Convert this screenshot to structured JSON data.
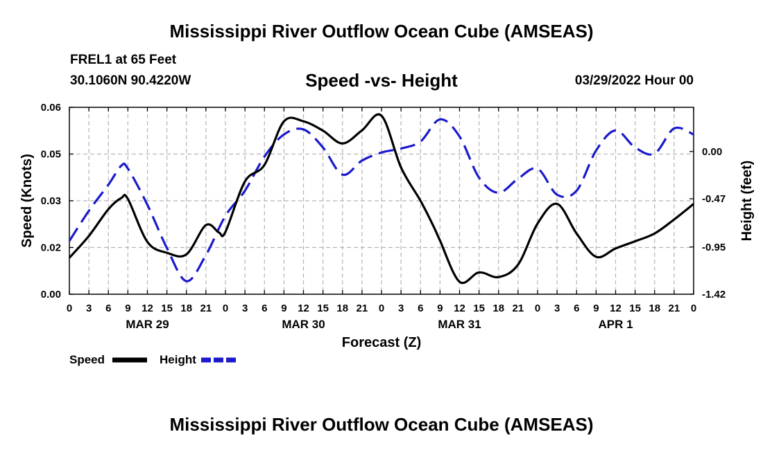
{
  "title": "Mississippi River Outflow Ocean Cube (AMSEAS)",
  "bottom_title": "Mississippi River Outflow Ocean Cube (AMSEAS)",
  "station": "FREL1 at 65 Feet",
  "coords": "30.1060N  90.4220W",
  "subtitle": "Speed -vs- Height",
  "datetime": "03/29/2022 Hour 00",
  "colors": {
    "speed": "#000000",
    "height": "#1a1acc",
    "grid": "#b4b4b4"
  },
  "chart_data": {
    "type": "line",
    "title": "Speed -vs- Height",
    "xlabel": "Forecast (Z)",
    "ylabel": "Speed (Knots)",
    "y2label": "Height (feet)",
    "xlim": [
      0,
      96
    ],
    "ylim": [
      0,
      0.06
    ],
    "y2lim": [
      -1.42,
      0.44
    ],
    "yticks": [
      0.0,
      0.015,
      0.03,
      0.045,
      0.06
    ],
    "ytick_labels": [
      "0.00",
      "0.02",
      "0.03",
      "0.05",
      "0.06"
    ],
    "y2ticks": [
      -1.42,
      -0.95,
      -0.47,
      0.0
    ],
    "y2tick_labels": [
      "-1.42",
      "-0.95",
      "-0.47",
      "0.00"
    ],
    "xticks": [
      0,
      3,
      6,
      9,
      12,
      15,
      18,
      21,
      24,
      27,
      30,
      33,
      36,
      39,
      42,
      45,
      48,
      51,
      54,
      57,
      60,
      63,
      66,
      69,
      72,
      75,
      78,
      81,
      84,
      87,
      90,
      93,
      96
    ],
    "xtick_labels": [
      "0",
      "3",
      "6",
      "9",
      "12",
      "15",
      "18",
      "21",
      "0",
      "3",
      "6",
      "9",
      "12",
      "15",
      "18",
      "21",
      "0",
      "3",
      "6",
      "9",
      "12",
      "15",
      "18",
      "21",
      "0",
      "3",
      "6",
      "9",
      "12",
      "15",
      "18",
      "21",
      "0"
    ],
    "date_labels": [
      {
        "label": "MAR 29",
        "x": 12
      },
      {
        "label": "MAR 30",
        "x": 36
      },
      {
        "label": "MAR 31",
        "x": 60
      },
      {
        "label": "APR 1",
        "x": 84
      }
    ],
    "grid": true,
    "legend": {
      "position": "bottom-left",
      "entries": [
        "Speed",
        "Height"
      ]
    },
    "series": [
      {
        "name": "Speed",
        "axis": "left",
        "style": "solid",
        "x": [
          0,
          3,
          6,
          8,
          9,
          12,
          15,
          18,
          21,
          23,
          24,
          27,
          30,
          33,
          36,
          39,
          42,
          45,
          48,
          51,
          54,
          56,
          57,
          60,
          63,
          66,
          69,
          72,
          75,
          78,
          81,
          84,
          87,
          90,
          93,
          96
        ],
        "values": [
          0.0117,
          0.0187,
          0.0273,
          0.0309,
          0.0306,
          0.0168,
          0.0133,
          0.0128,
          0.0222,
          0.0198,
          0.02,
          0.0362,
          0.0415,
          0.0555,
          0.0555,
          0.0525,
          0.0484,
          0.0526,
          0.0573,
          0.0407,
          0.03,
          0.0218,
          0.0172,
          0.004,
          0.007,
          0.0055,
          0.0095,
          0.0227,
          0.029,
          0.0195,
          0.012,
          0.0147,
          0.017,
          0.0195,
          0.024,
          0.029
        ]
      },
      {
        "name": "Height",
        "axis": "right",
        "style": "dashed",
        "x": [
          0,
          3,
          6,
          8,
          9,
          12,
          15,
          18,
          21,
          24,
          27,
          30,
          33,
          36,
          39,
          42,
          45,
          48,
          51,
          54,
          57,
          60,
          63,
          66,
          69,
          72,
          75,
          78,
          81,
          84,
          87,
          90,
          93,
          96
        ],
        "values": [
          -0.89,
          -0.59,
          -0.33,
          -0.14,
          -0.17,
          -0.53,
          -0.96,
          -1.29,
          -1.03,
          -0.64,
          -0.39,
          -0.05,
          0.17,
          0.22,
          0.04,
          -0.23,
          -0.09,
          -0.01,
          0.03,
          0.1,
          0.32,
          0.15,
          -0.26,
          -0.41,
          -0.27,
          -0.17,
          -0.43,
          -0.39,
          0.01,
          0.21,
          0.04,
          -0.02,
          0.23,
          0.17
        ]
      }
    ]
  }
}
